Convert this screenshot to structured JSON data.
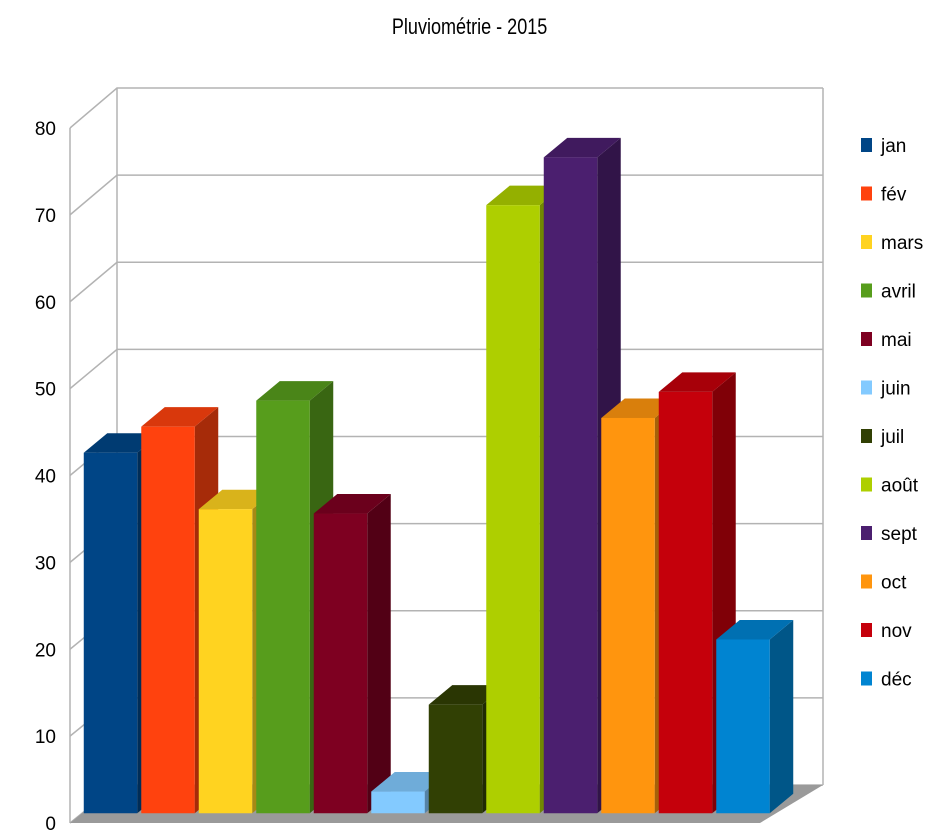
{
  "chart_data": {
    "type": "bar",
    "title": "Pluviométrie - 2015",
    "xlabel": "",
    "ylabel": "",
    "ylim": [
      0,
      80
    ],
    "yticks": [
      0,
      10,
      20,
      30,
      40,
      50,
      60,
      70,
      80
    ],
    "yticklabels": [
      "0",
      "10",
      "20",
      "30",
      "40",
      "50",
      "60",
      "70",
      "80"
    ],
    "grid": true,
    "three_d": true,
    "legend_position": "right",
    "series": [
      {
        "name": "jan",
        "value": 41.5,
        "color": "#004586"
      },
      {
        "name": "fév",
        "value": 44.5,
        "color": "#ff420e"
      },
      {
        "name": "mars",
        "value": 35,
        "color": "#ffd320"
      },
      {
        "name": "avril",
        "value": 47.5,
        "color": "#579d1c"
      },
      {
        "name": "mai",
        "value": 34.5,
        "color": "#7e0021"
      },
      {
        "name": "juin",
        "value": 2.5,
        "color": "#83caff"
      },
      {
        "name": "juil",
        "value": 12.5,
        "color": "#314004"
      },
      {
        "name": "août",
        "value": 70,
        "color": "#aecf00"
      },
      {
        "name": "sept",
        "value": 75.5,
        "color": "#4b1f6f"
      },
      {
        "name": "oct",
        "value": 45.5,
        "color": "#ff950e"
      },
      {
        "name": "nov",
        "value": 48.5,
        "color": "#c5000b"
      },
      {
        "name": "déc",
        "value": 20,
        "color": "#0084d1"
      }
    ]
  }
}
